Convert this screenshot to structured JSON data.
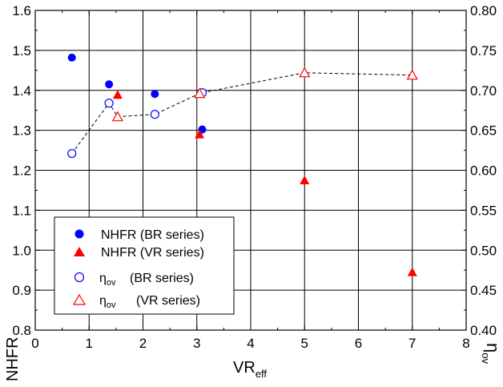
{
  "chart_data": {
    "type": "scatter",
    "xlabel": "VR",
    "xlabel_sub": "eff",
    "ylabel": "NHFR",
    "y2label": "η",
    "y2label_sub": "ov",
    "xlim": [
      0,
      8
    ],
    "ylim": [
      0.8,
      1.6
    ],
    "y2lim": [
      0.4,
      0.8
    ],
    "x_ticks": [
      "0",
      "1",
      "2",
      "3",
      "4",
      "5",
      "6",
      "7",
      "8"
    ],
    "y_ticks": [
      "0.8",
      "0.9",
      "1.0",
      "1.1",
      "1.2",
      "1.3",
      "1.4",
      "1.5",
      "1.6"
    ],
    "y2_ticks": [
      "0.40",
      "0.45",
      "0.50",
      "0.55",
      "0.60",
      "0.65",
      "0.70",
      "0.75",
      "0.80"
    ],
    "grid": true,
    "legend_position": "bottom-left",
    "series": [
      {
        "name": "NHFR (BR series)",
        "axis": "left",
        "marker": "filled-circle",
        "color": "#0000ff",
        "connected": false,
        "points": [
          [
            0.68,
            1.482
          ],
          [
            1.37,
            1.415
          ],
          [
            2.22,
            1.391
          ],
          [
            3.1,
            1.302
          ]
        ]
      },
      {
        "name": "NHFR (VR series)",
        "axis": "left",
        "marker": "filled-triangle",
        "color": "#ff0000",
        "connected": false,
        "points": [
          [
            1.53,
            1.389
          ],
          [
            3.05,
            1.29
          ],
          [
            5.0,
            1.175
          ],
          [
            7.0,
            0.945
          ]
        ]
      },
      {
        "name_prefix": "η",
        "name_sub": "ov",
        "name_suffix": "(BR series)",
        "axis": "right",
        "marker": "open-circle",
        "color": "#0000ff",
        "connected": true,
        "points": [
          [
            0.68,
            0.621
          ],
          [
            1.37,
            0.684
          ],
          [
            2.22,
            0.67
          ],
          [
            3.1,
            0.697
          ]
        ]
      },
      {
        "name_prefix": "η",
        "name_sub": "ov",
        "name_suffix": "(VR series)",
        "axis": "right",
        "marker": "open-triangle",
        "color": "#ff0000",
        "connected": true,
        "points": [
          [
            1.53,
            0.667
          ],
          [
            3.05,
            0.696
          ],
          [
            5.0,
            0.722
          ],
          [
            7.0,
            0.719
          ]
        ]
      }
    ],
    "dashed_line_order": [
      [
        0.68,
        0.621
      ],
      [
        1.37,
        0.684
      ],
      [
        1.53,
        0.667
      ],
      [
        2.22,
        0.67
      ],
      [
        3.05,
        0.696
      ],
      [
        3.1,
        0.697
      ],
      [
        5.0,
        0.722
      ],
      [
        7.0,
        0.719
      ]
    ]
  }
}
